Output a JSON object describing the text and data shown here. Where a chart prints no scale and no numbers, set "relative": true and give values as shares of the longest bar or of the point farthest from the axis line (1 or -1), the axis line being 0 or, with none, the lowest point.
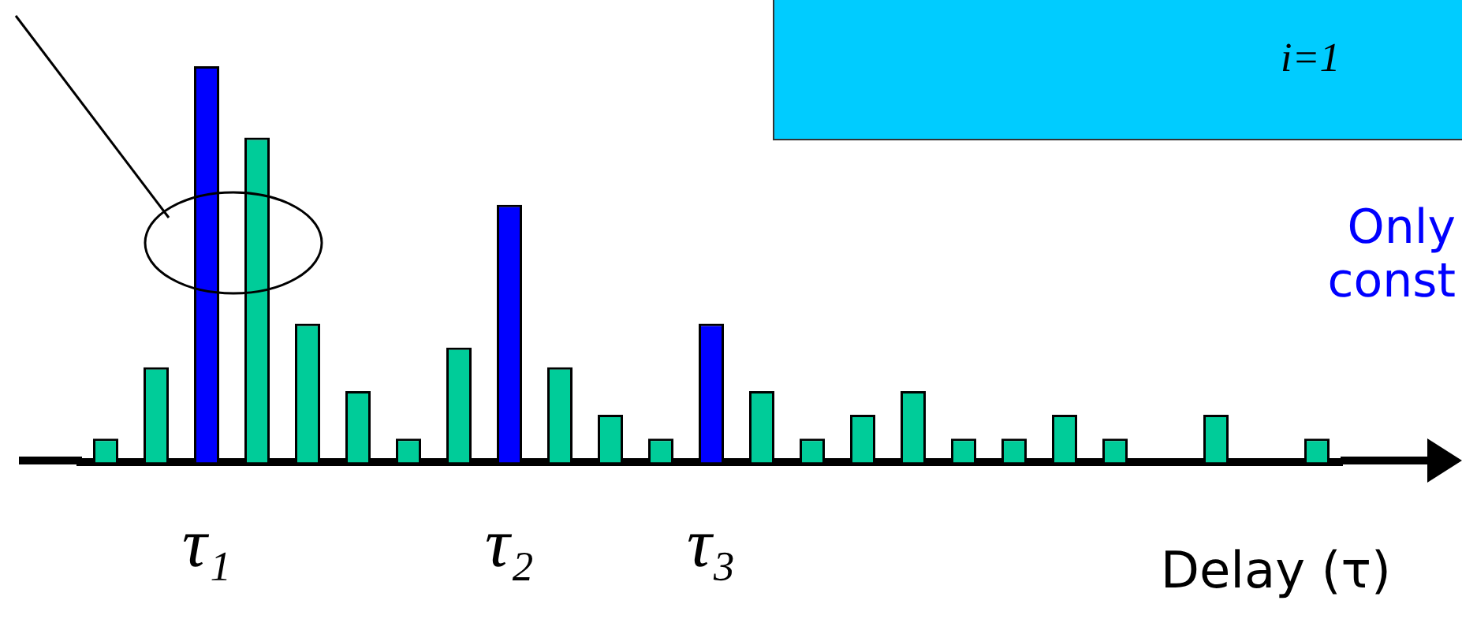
{
  "chart_data": {
    "type": "bar",
    "relative": true,
    "xlabel": "Delay (τ)",
    "categories": [
      null,
      null,
      "τ₁",
      null,
      null,
      null,
      null,
      null,
      "τ₂",
      null,
      null,
      null,
      "τ₃",
      null,
      null,
      null,
      null,
      null,
      null,
      null,
      null,
      null,
      null,
      null,
      null
    ],
    "values": [
      0.06,
      0.24,
      1,
      0.82,
      0.35,
      0.18,
      0.06,
      0.29,
      0.65,
      0.24,
      0.12,
      0.06,
      0.35,
      0.18,
      0.06,
      0.12,
      0.18,
      0.06,
      0.06,
      0.12,
      0.06,
      null,
      0.12,
      null,
      0.06
    ],
    "colors": [
      "#00cc99",
      "#00cc99",
      "#0000ff",
      "#00cc99",
      "#00cc99",
      "#00cc99",
      "#00cc99",
      "#00cc99",
      "#0000ff",
      "#00cc99",
      "#00cc99",
      "#00cc99",
      "#0000ff",
      "#00cc99",
      "#00cc99",
      "#00cc99",
      "#00cc99",
      "#00cc99",
      "#00cc99",
      "#00cc99",
      "#00cc99",
      "#00cc99",
      "#00cc99",
      "#00cc99",
      "#00cc99"
    ],
    "annotations": [
      "i=1",
      "Only",
      "const"
    ],
    "legend": false,
    "grid": false
  }
}
